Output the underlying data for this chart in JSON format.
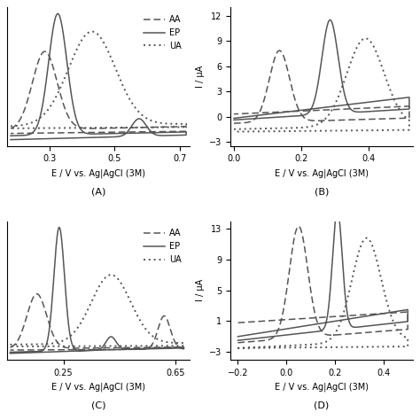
{
  "subplots": [
    {
      "label": "(A)",
      "xlabel": "E / V vs. Ag|AgCl (3M)",
      "xlim": [
        0.17,
        0.73
      ],
      "xticks": [
        0.3,
        0.5,
        0.7
      ],
      "has_ylabel": false,
      "legend": true,
      "legend_loc": "upper right"
    },
    {
      "label": "(B)",
      "xlabel": "E / V vs. Ag|AgCl (3M)",
      "xlim": [
        -0.01,
        0.53
      ],
      "xticks": [
        0.0,
        0.2,
        0.4
      ],
      "yticks": [
        -3,
        0,
        3,
        6,
        9,
        12
      ],
      "ylim": [
        -3.5,
        13
      ],
      "has_ylabel": true,
      "ylabel": "I / μA",
      "legend": false
    },
    {
      "label": "(C)",
      "xlabel": "E / V vs. Ag|AgCl (3M)",
      "xlim": [
        0.05,
        0.7
      ],
      "xticks": [
        0.25,
        0.65
      ],
      "has_ylabel": false,
      "legend": true,
      "legend_loc": "upper right"
    },
    {
      "label": "(D)",
      "xlabel": "E / V vs. Ag|AgCl (3M)",
      "xlim": [
        -0.23,
        0.52
      ],
      "xticks": [
        -0.2,
        0.0,
        0.2,
        0.4
      ],
      "yticks": [
        -3,
        1,
        5,
        9,
        13
      ],
      "ylim": [
        -4,
        14
      ],
      "has_ylabel": true,
      "ylabel": "I / μA",
      "legend": false
    }
  ],
  "line_color": "#555555",
  "bg_color": "#ffffff",
  "font_size": 7,
  "legend_fontsize": 7
}
